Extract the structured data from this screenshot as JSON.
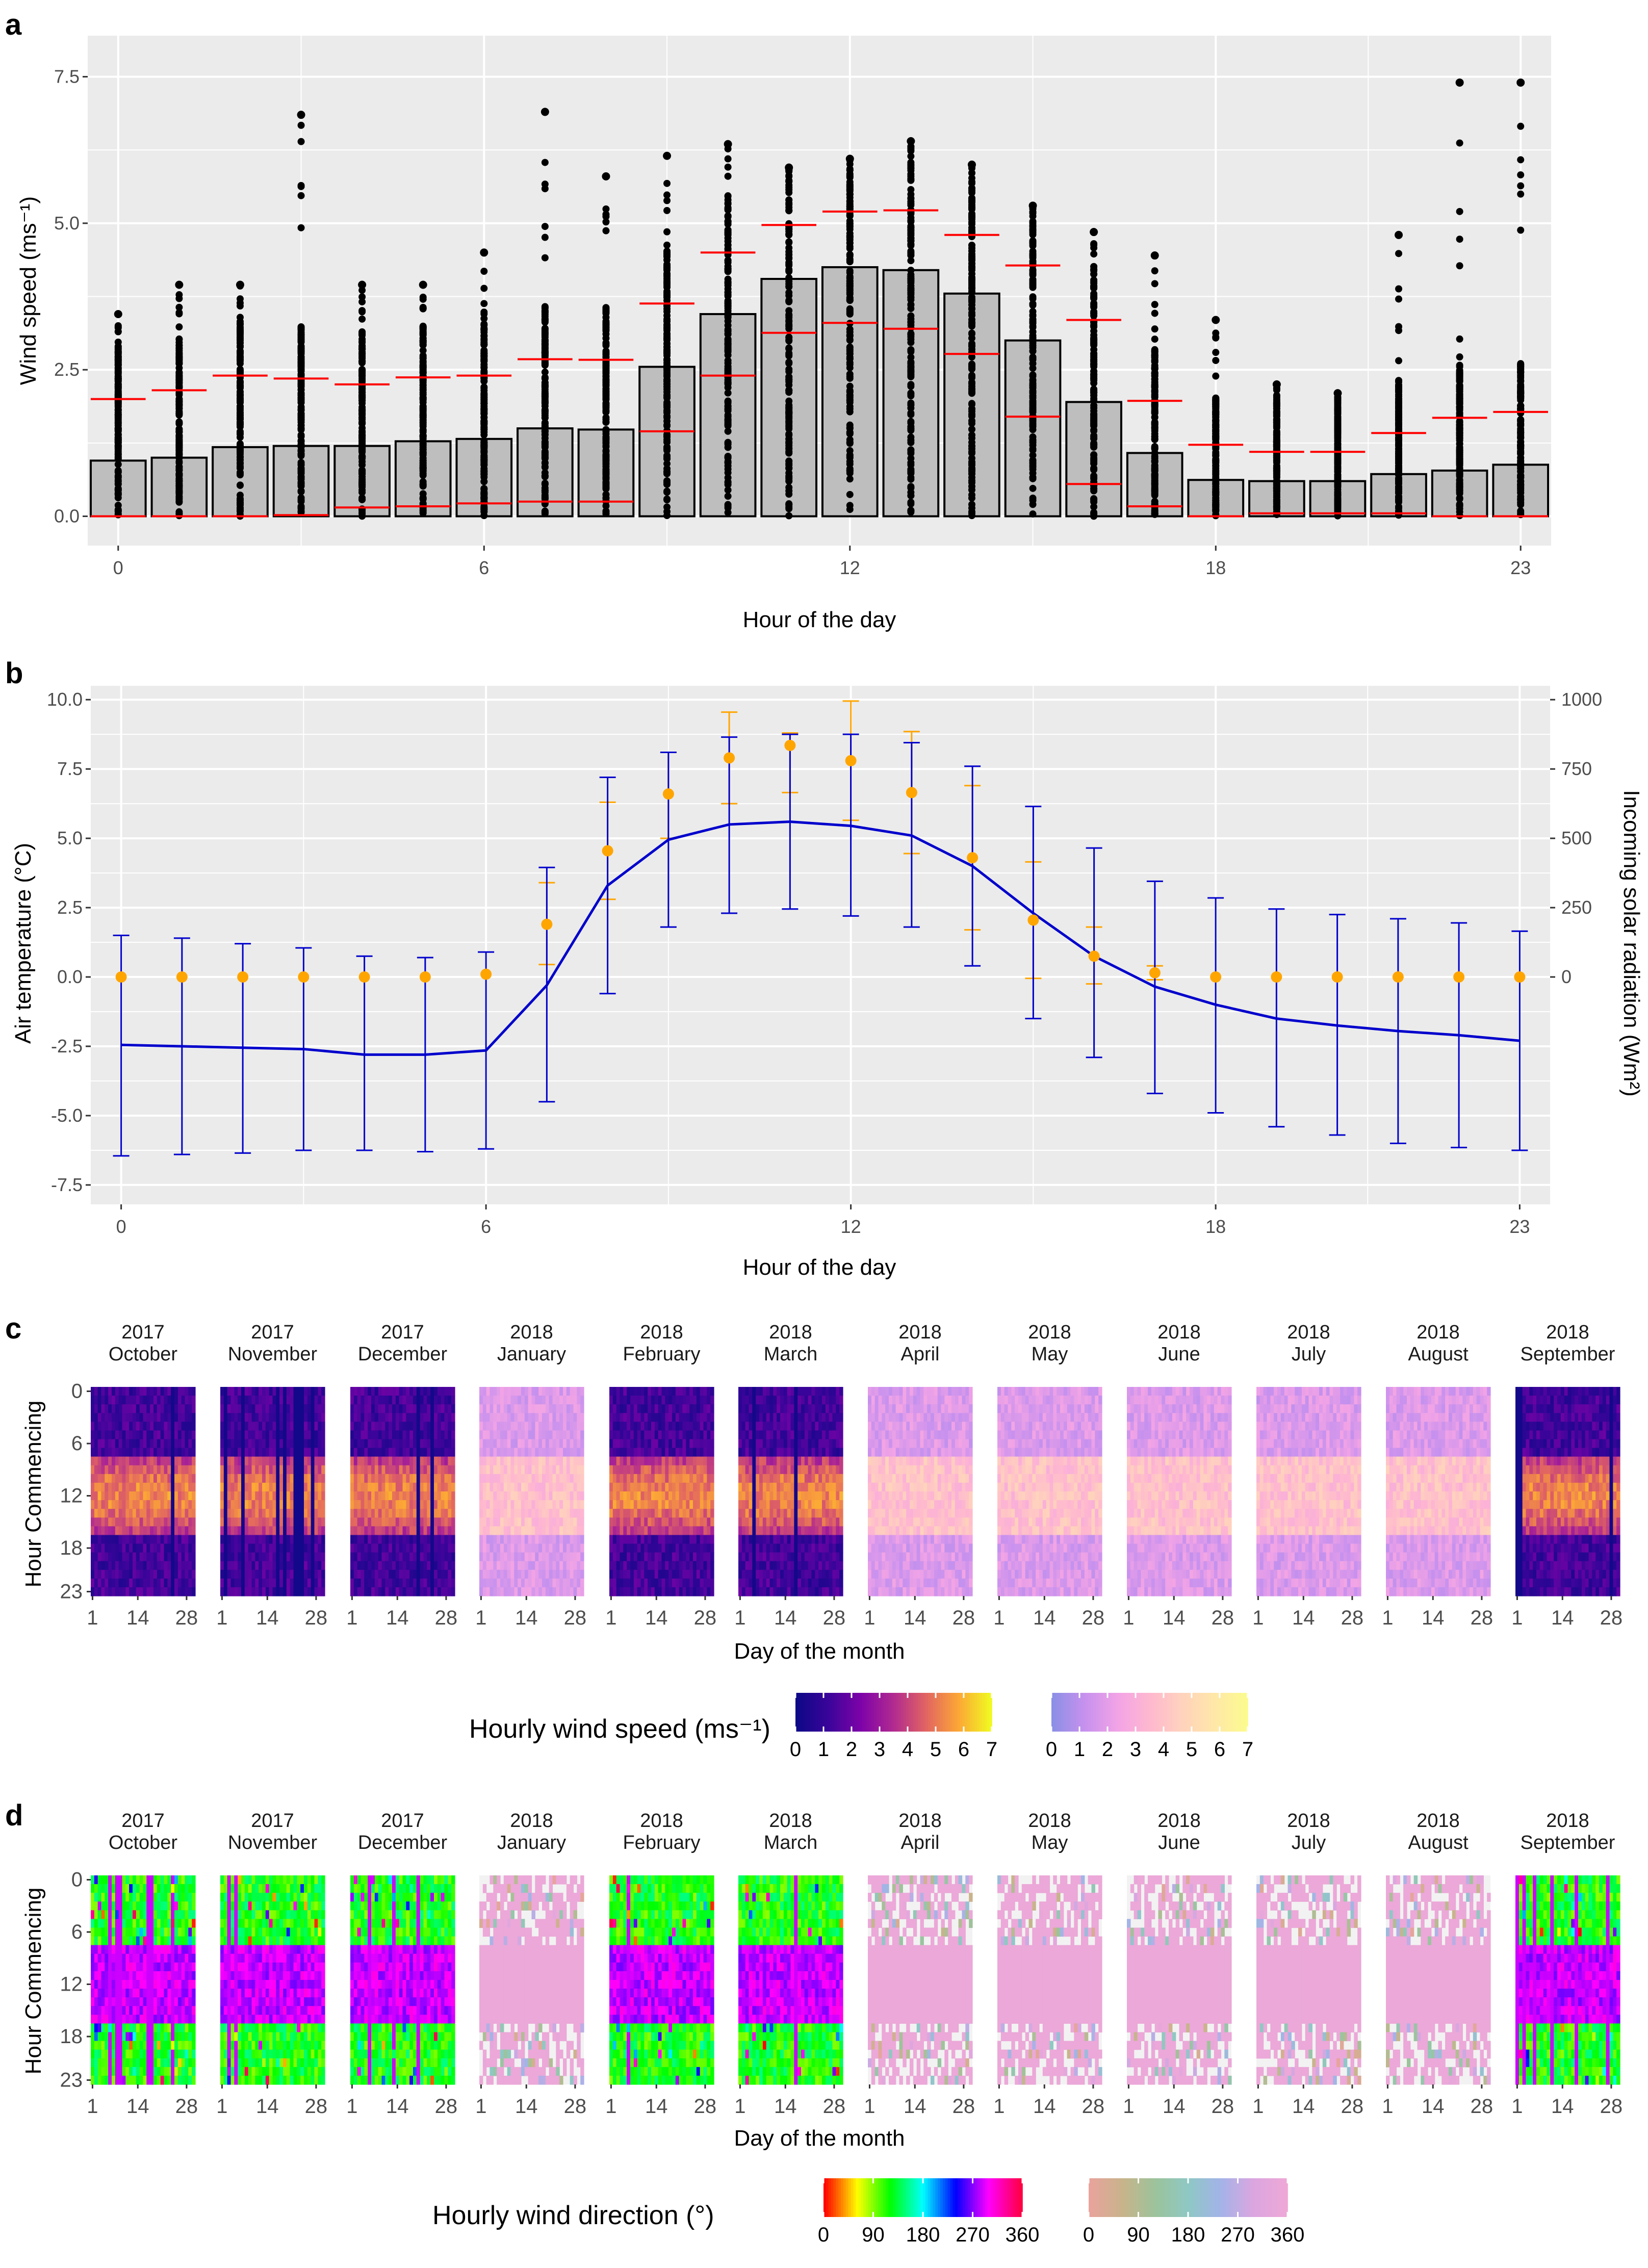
{
  "panels": {
    "a": "a",
    "b": "b",
    "c": "c",
    "d": "d"
  },
  "chart_data": [
    {
      "type": "bar",
      "panel": "a",
      "title": "",
      "xlabel": "Hour of the day",
      "ylabel": "Wind speed (ms⁻¹)",
      "xticks": [
        "0",
        "6",
        "12",
        "18",
        "23"
      ],
      "yticks": [
        "0.0",
        "2.5",
        "5.0",
        "7.5"
      ],
      "ylim": [
        -0.5,
        8.2
      ],
      "categories": [
        0,
        1,
        2,
        3,
        4,
        5,
        6,
        7,
        8,
        9,
        10,
        11,
        12,
        13,
        14,
        15,
        16,
        17,
        18,
        19,
        20,
        21,
        22,
        23
      ],
      "series": [
        {
          "name": "Mean hourly wind speed (bar)",
          "values": [
            0.95,
            1.0,
            1.18,
            1.2,
            1.2,
            1.28,
            1.32,
            1.5,
            1.48,
            2.55,
            3.45,
            4.05,
            4.25,
            4.2,
            3.8,
            3.0,
            1.95,
            1.08,
            0.62,
            0.6,
            0.6,
            0.72,
            0.78,
            0.88
          ]
        },
        {
          "name": "Upper red line",
          "values": [
            2.0,
            2.15,
            2.4,
            2.35,
            2.25,
            2.37,
            2.4,
            2.68,
            2.67,
            3.63,
            4.5,
            4.97,
            5.2,
            5.22,
            4.8,
            4.28,
            3.35,
            1.97,
            1.22,
            1.1,
            1.1,
            1.42,
            1.68,
            1.78
          ]
        },
        {
          "name": "Lower red line",
          "values": [
            0.0,
            0.0,
            0.0,
            0.02,
            0.15,
            0.17,
            0.22,
            0.25,
            0.25,
            1.45,
            2.4,
            3.13,
            3.3,
            3.2,
            2.77,
            1.7,
            0.55,
            0.17,
            0.0,
            0.05,
            0.05,
            0.05,
            0.0,
            0.0
          ]
        },
        {
          "name": "Maximum observed (top point)",
          "values": [
            3.45,
            3.95,
            3.95,
            6.85,
            3.95,
            3.95,
            4.5,
            6.9,
            5.8,
            6.15,
            6.35,
            5.95,
            6.1,
            6.4,
            6.0,
            5.3,
            4.85,
            4.45,
            3.35,
            2.25,
            2.1,
            4.8,
            7.4,
            7.4
          ]
        }
      ]
    },
    {
      "type": "line",
      "panel": "b",
      "title": "",
      "xlabel": "Hour of the day",
      "ylabel": "Air temperature (°C)",
      "y2label": "Incoming solar radiation (Wm²)",
      "xticks": [
        "0",
        "6",
        "12",
        "18",
        "23"
      ],
      "yticks": [
        "-7.5",
        "-5.0",
        "-2.5",
        "0.0",
        "2.5",
        "5.0",
        "7.5",
        "10.0"
      ],
      "y2ticks": [
        "0",
        "250",
        "500",
        "750",
        "1000"
      ],
      "ylim": [
        -8.2,
        10.5
      ],
      "y2lim": [
        -820,
        1050
      ],
      "x": [
        0,
        1,
        2,
        3,
        4,
        5,
        6,
        7,
        8,
        9,
        10,
        11,
        12,
        13,
        14,
        15,
        16,
        17,
        18,
        19,
        20,
        21,
        22,
        23
      ],
      "series": [
        {
          "name": "Air temperature mean",
          "axis": "left",
          "color": "#0000cc",
          "values": [
            -2.45,
            -2.5,
            -2.55,
            -2.6,
            -2.8,
            -2.8,
            -2.65,
            -0.3,
            3.3,
            4.95,
            5.5,
            5.6,
            5.45,
            5.1,
            4.0,
            2.3,
            0.75,
            -0.35,
            -1.0,
            -1.5,
            -1.75,
            -1.95,
            -2.1,
            -2.3
          ],
          "upper": [
            1.5,
            1.4,
            1.2,
            1.05,
            0.75,
            0.7,
            0.9,
            3.95,
            7.2,
            8.1,
            8.65,
            8.75,
            8.75,
            8.45,
            7.6,
            6.15,
            4.65,
            3.45,
            2.85,
            2.45,
            2.25,
            2.1,
            1.95,
            1.65
          ],
          "lower": [
            -6.45,
            -6.4,
            -6.35,
            -6.25,
            -6.25,
            -6.3,
            -6.2,
            -4.5,
            -0.6,
            1.8,
            2.3,
            2.45,
            2.2,
            1.8,
            0.4,
            -1.5,
            -2.9,
            -4.2,
            -4.9,
            -5.4,
            -5.7,
            -6.0,
            -6.15,
            -6.25
          ]
        },
        {
          "name": "Incoming solar radiation mean",
          "axis": "right",
          "color": "#ffa500",
          "values": [
            0,
            0,
            0,
            0,
            0,
            0,
            10,
            190,
            455,
            660,
            790,
            835,
            780,
            665,
            430,
            205,
            75,
            15,
            0,
            0,
            0,
            0,
            0,
            0
          ],
          "upper": [
            0,
            0,
            0,
            0,
            0,
            0,
            10,
            340,
            630,
            810,
            955,
            880,
            995,
            885,
            690,
            415,
            180,
            40,
            0,
            0,
            0,
            0,
            0,
            0
          ],
          "lower": [
            0,
            0,
            0,
            0,
            0,
            0,
            10,
            45,
            280,
            500,
            625,
            665,
            565,
            445,
            170,
            -5,
            -25,
            -10,
            0,
            0,
            0,
            0,
            0,
            0
          ]
        }
      ]
    },
    {
      "type": "heatmap",
      "panel": "c",
      "xlabel": "Day of the month",
      "ylabel": "Hour Commencing",
      "xticks": [
        "1",
        "14",
        "28"
      ],
      "yticks": [
        "0",
        "6",
        "12",
        "18",
        "23"
      ],
      "months": [
        {
          "year": "2017",
          "month": "October",
          "palette": "A"
        },
        {
          "year": "2017",
          "month": "November",
          "palette": "A"
        },
        {
          "year": "2017",
          "month": "December",
          "palette": "A"
        },
        {
          "year": "2018",
          "month": "January",
          "palette": "B"
        },
        {
          "year": "2018",
          "month": "February",
          "palette": "A"
        },
        {
          "year": "2018",
          "month": "March",
          "palette": "A"
        },
        {
          "year": "2018",
          "month": "April",
          "palette": "B"
        },
        {
          "year": "2018",
          "month": "May",
          "palette": "B"
        },
        {
          "year": "2018",
          "month": "June",
          "palette": "B"
        },
        {
          "year": "2018",
          "month": "July",
          "palette": "B"
        },
        {
          "year": "2018",
          "month": "August",
          "palette": "B"
        },
        {
          "year": "2018",
          "month": "September",
          "palette": "A"
        }
      ],
      "legend_title": "Hourly wind speed (ms⁻¹)",
      "legend_ticks": [
        "0",
        "1",
        "2",
        "3",
        "4",
        "5",
        "6",
        "7"
      ],
      "legend_range": [
        0,
        7
      ]
    },
    {
      "type": "heatmap",
      "panel": "d",
      "xlabel": "Day of the month",
      "ylabel": "Hour Commencing",
      "xticks": [
        "1",
        "14",
        "28"
      ],
      "yticks": [
        "0",
        "6",
        "12",
        "18",
        "23"
      ],
      "months": [
        {
          "year": "2017",
          "month": "October",
          "palette": "A"
        },
        {
          "year": "2017",
          "month": "November",
          "palette": "A"
        },
        {
          "year": "2017",
          "month": "December",
          "palette": "A"
        },
        {
          "year": "2018",
          "month": "January",
          "palette": "B"
        },
        {
          "year": "2018",
          "month": "February",
          "palette": "A"
        },
        {
          "year": "2018",
          "month": "March",
          "palette": "A"
        },
        {
          "year": "2018",
          "month": "April",
          "palette": "B"
        },
        {
          "year": "2018",
          "month": "May",
          "palette": "B"
        },
        {
          "year": "2018",
          "month": "June",
          "palette": "B"
        },
        {
          "year": "2018",
          "month": "July",
          "palette": "B"
        },
        {
          "year": "2018",
          "month": "August",
          "palette": "B"
        },
        {
          "year": "2018",
          "month": "September",
          "palette": "A"
        }
      ],
      "legend_title": "Hourly wind direction (°)",
      "legend_ticks_a": [
        "0",
        "90",
        "180",
        "270",
        "360"
      ],
      "legend_ticks_b": [
        "0",
        "90",
        "180",
        "270",
        "360"
      ],
      "legend_range": [
        0,
        360
      ]
    }
  ],
  "colors": {
    "panel_bg": "#ebebeb",
    "grid": "#ffffff",
    "bar_fill": "#bebebe",
    "red_line": "#ff0000",
    "temp_line": "#0000cc",
    "solar": "#ffa500",
    "speed_a": [
      "#0d0887",
      "#3b049a",
      "#7e03a8",
      "#b12a90",
      "#e16462",
      "#fca636",
      "#f0f921"
    ],
    "speed_b": [
      "#8c8fe6",
      "#c791ee",
      "#f1a3e6",
      "#ffb8cf",
      "#ffd2bd",
      "#ffe7a8",
      "#fcfb8f"
    ],
    "dir_a": [
      "#ff0000",
      "#ffff00",
      "#00ff00",
      "#00ffff",
      "#0000ff",
      "#ff00ff",
      "#ff0044"
    ],
    "dir_b": [
      "#e8a39c",
      "#c8b48b",
      "#9cc39b",
      "#8ec8c4",
      "#a3b3e8",
      "#dba6e0",
      "#eea8d6"
    ]
  }
}
